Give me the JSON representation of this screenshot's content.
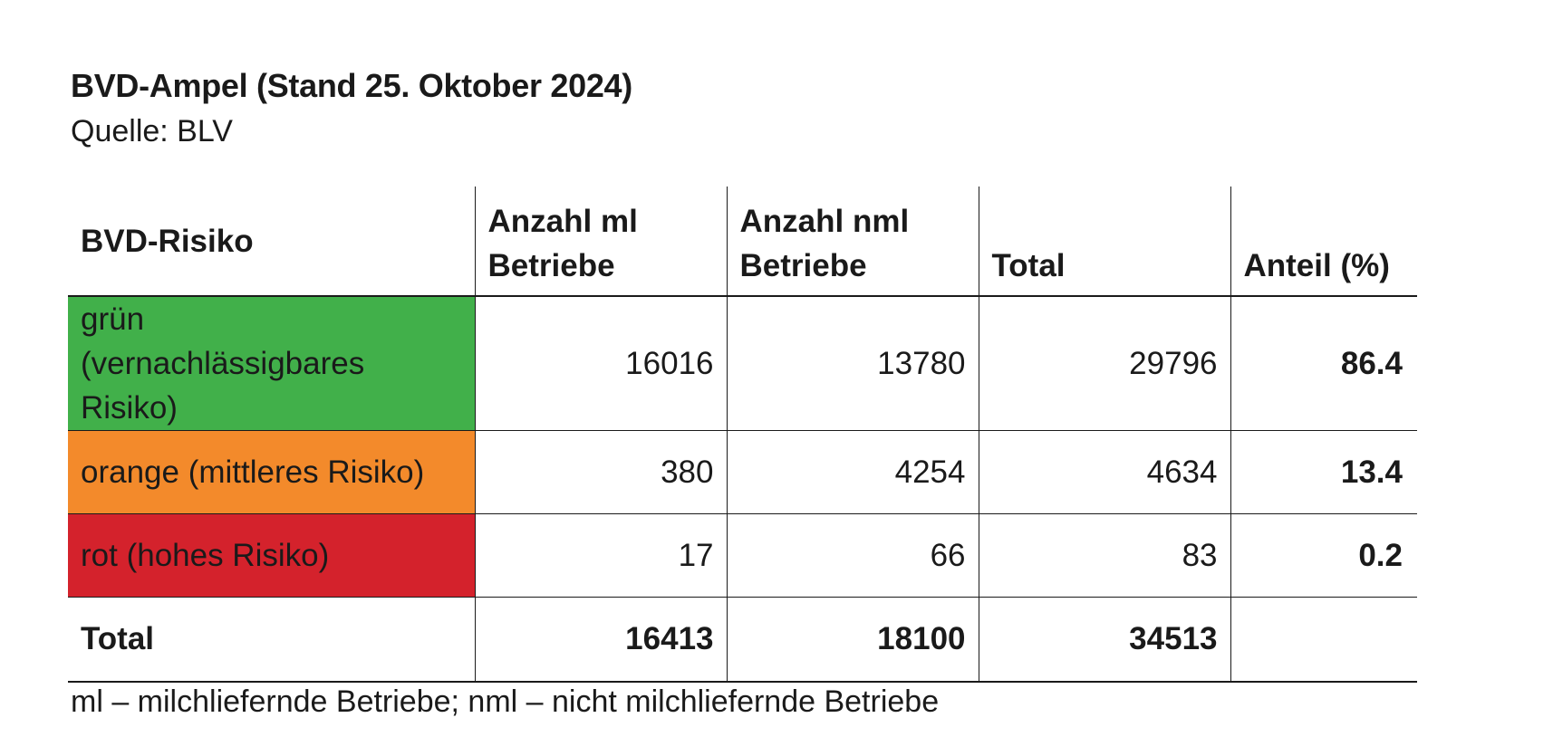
{
  "title": "BVD-Ampel (Stand 25. Oktober 2024)",
  "source": "Quelle: BLV",
  "table": {
    "headers": {
      "risk": "BVD-Risiko",
      "ml_line1": "Anzahl ml",
      "ml_line2": "Betriebe",
      "nml_line1": "Anzahl nml",
      "nml_line2": "Betriebe",
      "total": "Total",
      "share": "Anteil (%)"
    },
    "rows": [
      {
        "label_line1": "grün",
        "label_line2": "(vernachlässigbares Risiko)",
        "ml": "16016",
        "nml": "13780",
        "total": "29796",
        "share": "86.4",
        "color": "#41b04a"
      },
      {
        "label_line1": "orange (mittleres Risiko)",
        "ml": "380",
        "nml": "4254",
        "total": "4634",
        "share": "13.4",
        "color": "#f38a2b"
      },
      {
        "label_line1": "rot (hohes Risiko)",
        "ml": "17",
        "nml": "66",
        "total": "83",
        "share": "0.2",
        "color": "#d4222c"
      }
    ],
    "total_row": {
      "label": "Total",
      "ml": "16413",
      "nml": "18100",
      "total": "34513",
      "share": ""
    }
  },
  "footnote": "ml – milchliefernde Betriebe; nml – nicht milchliefernde Betriebe"
}
